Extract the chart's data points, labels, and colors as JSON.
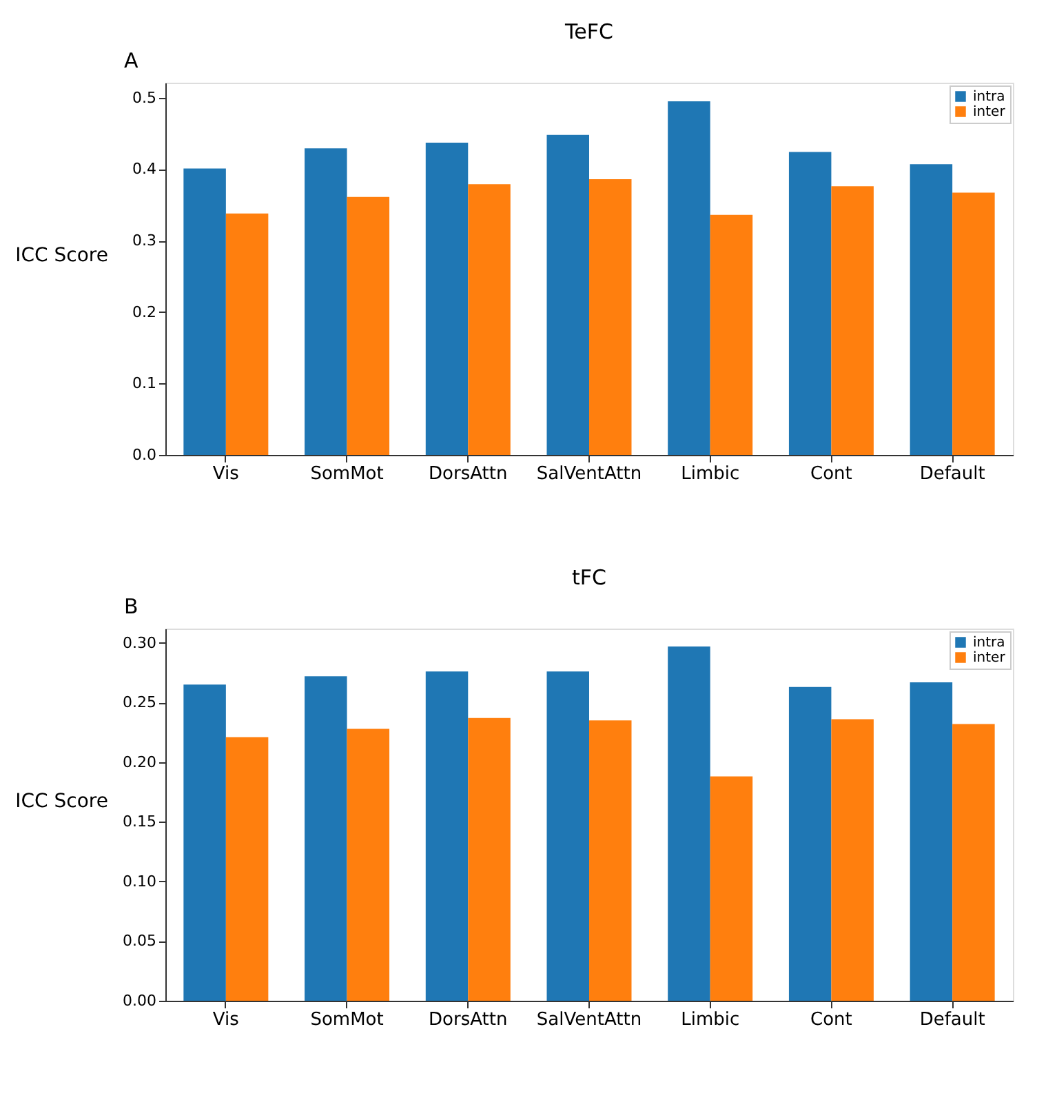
{
  "chart_data": [
    {
      "type": "bar",
      "title": "TeFC",
      "ylabel": "ICC Score",
      "annotations": [
        "A"
      ],
      "categories": [
        "Vis",
        "SomMot",
        "DorsAttn",
        "SalVentAttn",
        "Limbic",
        "Cont",
        "Default"
      ],
      "series": [
        {
          "name": "intra",
          "color": "#1f77b4",
          "values": [
            0.401,
            0.429,
            0.437,
            0.448,
            0.495,
            0.424,
            0.407
          ]
        },
        {
          "name": "inter",
          "color": "#ff7f0e",
          "values": [
            0.338,
            0.361,
            0.379,
            0.386,
            0.336,
            0.376,
            0.367
          ]
        }
      ],
      "ylim": [
        0,
        0.521
      ],
      "yticks": [
        {
          "value": 0,
          "label": "0.0"
        },
        {
          "value": 0.1,
          "label": "0.1"
        },
        {
          "value": 0.2,
          "label": "0.2"
        },
        {
          "value": 0.3,
          "label": "0.3"
        },
        {
          "value": 0.4,
          "label": "0.4"
        },
        {
          "value": 0.5,
          "label": "0.5"
        }
      ],
      "grid": false,
      "legend": "top right"
    },
    {
      "type": "bar",
      "title": "tFC",
      "ylabel": "ICC Score",
      "annotations": [
        "B"
      ],
      "categories": [
        "Vis",
        "SomMot",
        "DorsAttn",
        "SalVentAttn",
        "Limbic",
        "Cont",
        "Default"
      ],
      "series": [
        {
          "name": "intra",
          "color": "#1f77b4",
          "values": [
            0.265,
            0.272,
            0.276,
            0.276,
            0.297,
            0.263,
            0.267
          ]
        },
        {
          "name": "inter",
          "color": "#ff7f0e",
          "values": [
            0.221,
            0.228,
            0.237,
            0.235,
            0.188,
            0.236,
            0.232
          ]
        }
      ],
      "ylim": [
        0,
        0.312
      ],
      "yticks": [
        {
          "value": 0,
          "label": "0.00"
        },
        {
          "value": 0.05,
          "label": "0.05"
        },
        {
          "value": 0.1,
          "label": "0.10"
        },
        {
          "value": 0.15,
          "label": "0.15"
        },
        {
          "value": 0.2,
          "label": "0.20"
        },
        {
          "value": 0.25,
          "label": "0.25"
        },
        {
          "value": 0.3,
          "label": "0.30"
        }
      ],
      "grid": false,
      "legend": "top right"
    }
  ]
}
